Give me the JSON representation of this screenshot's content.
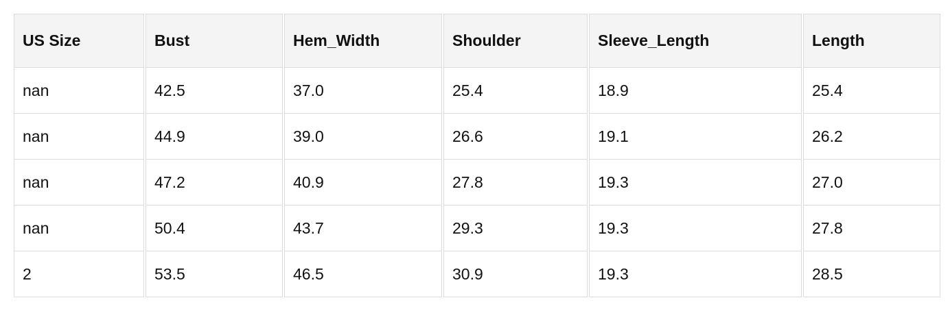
{
  "table": {
    "headers": [
      "US Size",
      "Bust",
      "Hem_Width",
      "Shoulder",
      "Sleeve_Length",
      "Length"
    ],
    "rows": [
      [
        "nan",
        "42.5",
        "37.0",
        "25.4",
        "18.9",
        "25.4"
      ],
      [
        "nan",
        "44.9",
        "39.0",
        "26.6",
        "19.1",
        "26.2"
      ],
      [
        "nan",
        "47.2",
        "40.9",
        "27.8",
        "19.3",
        "27.0"
      ],
      [
        "nan",
        "50.4",
        "43.7",
        "29.3",
        "19.3",
        "27.8"
      ],
      [
        "2",
        "53.5",
        "46.5",
        "30.9",
        "19.3",
        "28.5"
      ]
    ]
  }
}
